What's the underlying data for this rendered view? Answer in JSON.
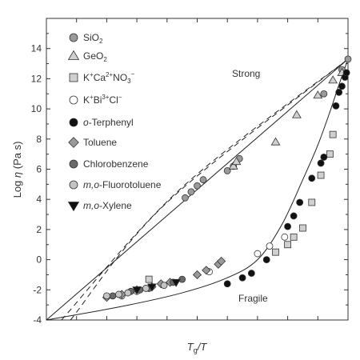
{
  "chart_data": {
    "type": "scatter",
    "title": "",
    "xlabel": "Tg/T",
    "ylabel": "Log η (Pa s)",
    "xlim": [
      0,
      1
    ],
    "ylim": [
      -4,
      16
    ],
    "yticks": [
      -4,
      -2,
      0,
      2,
      4,
      6,
      8,
      10,
      12,
      14
    ],
    "xticks_minor": [
      0.1,
      0.2,
      0.3,
      0.4,
      0.5,
      0.6,
      0.7,
      0.8,
      0.9
    ],
    "legend_position": "top-left",
    "annotations": [
      {
        "text": "Strong",
        "x": 0.66,
        "y": 12.3
      },
      {
        "text": "Fragile",
        "x": 0.65,
        "y": -3.3
      }
    ],
    "reference_lines": [
      {
        "name": "strong-arrhenius",
        "style": "solid",
        "points": [
          [
            0,
            -4
          ],
          [
            1,
            13.3
          ]
        ]
      },
      {
        "name": "fragile-fit",
        "style": "solid",
        "points": [
          [
            0,
            -4
          ],
          [
            0.25,
            -3.1
          ],
          [
            0.45,
            -2.2
          ],
          [
            0.6,
            -1.2
          ],
          [
            0.7,
            0.0
          ],
          [
            0.78,
            2.3
          ],
          [
            0.85,
            5.3
          ],
          [
            0.9,
            7.6
          ],
          [
            0.94,
            9.8
          ],
          [
            0.97,
            11.6
          ],
          [
            1,
            13.3
          ]
        ]
      },
      {
        "name": "dashed-fit-1",
        "style": "dashed",
        "points": [
          [
            0.08,
            -4
          ],
          [
            0.4,
            3.8
          ],
          [
            1,
            13.3
          ]
        ]
      },
      {
        "name": "dashed-fit-2",
        "style": "dashed",
        "points": [
          [
            0.05,
            -4
          ],
          [
            0.45,
            4.8
          ],
          [
            1,
            13.3
          ]
        ]
      }
    ],
    "series": [
      {
        "name": "SiO",
        "sub": "2",
        "sup": "",
        "marker": "circle",
        "fill": "#9a9a9a",
        "points": [
          [
            0.46,
            4.1
          ],
          [
            0.48,
            4.5
          ],
          [
            0.5,
            4.9
          ],
          [
            0.52,
            5.3
          ],
          [
            0.6,
            5.9
          ],
          [
            0.62,
            6.2
          ],
          [
            0.64,
            6.7
          ],
          [
            0.92,
            11.0
          ],
          [
            0.98,
            12.6
          ],
          [
            1.0,
            13.3
          ]
        ]
      },
      {
        "name": "GeO",
        "sub": "2",
        "sup": "",
        "marker": "triangle-up",
        "fill": "#d0d0d0",
        "points": [
          [
            0.62,
            6.2
          ],
          [
            0.63,
            6.5
          ],
          [
            0.76,
            7.8
          ],
          [
            0.83,
            9.6
          ],
          [
            0.9,
            10.9
          ],
          [
            0.95,
            11.9
          ],
          [
            0.98,
            12.4
          ]
        ]
      },
      {
        "name": "K+Ca2+NO3−",
        "sub": "",
        "sup": "",
        "marker": "square",
        "fill": "#d0d0d0",
        "points": [
          [
            0.34,
            -1.3
          ],
          [
            0.76,
            0.5
          ],
          [
            0.8,
            1.0
          ],
          [
            0.82,
            1.5
          ],
          [
            0.85,
            2.1
          ],
          [
            0.88,
            3.8
          ],
          [
            0.91,
            5.6
          ],
          [
            0.94,
            7.0
          ],
          [
            0.95,
            8.3
          ]
        ]
      },
      {
        "name": "K+Bi3+Cl−",
        "sub": "",
        "sup": "",
        "marker": "circle-open",
        "fill": "#ffffff",
        "points": [
          [
            0.25,
            -2.4
          ],
          [
            0.3,
            -2.1
          ],
          [
            0.54,
            -0.8
          ],
          [
            0.7,
            0.4
          ],
          [
            0.74,
            0.9
          ],
          [
            0.79,
            1.5
          ]
        ]
      },
      {
        "name": "o-Terphenyl",
        "sub": "",
        "sup": "",
        "marker": "circle",
        "fill": "#111111",
        "points": [
          [
            0.6,
            -1.6
          ],
          [
            0.65,
            -1.2
          ],
          [
            0.68,
            -0.9
          ],
          [
            0.73,
            0.0
          ],
          [
            0.8,
            2.2
          ],
          [
            0.82,
            2.9
          ],
          [
            0.84,
            3.8
          ],
          [
            0.88,
            5.4
          ],
          [
            0.91,
            6.4
          ],
          [
            0.92,
            6.8
          ],
          [
            0.96,
            10.2
          ],
          [
            0.97,
            11.1
          ],
          [
            0.98,
            11.5
          ],
          [
            0.99,
            12.1
          ],
          [
            0.995,
            12.4
          ]
        ]
      },
      {
        "name": "Toluene",
        "sub": "",
        "sup": "",
        "marker": "diamond",
        "fill": "#9a9a9a",
        "points": [
          [
            0.2,
            -2.5
          ],
          [
            0.25,
            -2.3
          ],
          [
            0.3,
            -2.0
          ],
          [
            0.35,
            -1.8
          ],
          [
            0.38,
            -1.6
          ],
          [
            0.41,
            -1.5
          ],
          [
            0.5,
            -1.0
          ],
          [
            0.53,
            -0.7
          ],
          [
            0.57,
            -0.3
          ],
          [
            0.58,
            -0.1
          ]
        ]
      },
      {
        "name": "Chlorobenzene",
        "sub": "",
        "sup": "",
        "marker": "circle",
        "fill": "#6a6a6a",
        "points": [
          [
            0.22,
            -2.4
          ],
          [
            0.28,
            -2.1
          ],
          [
            0.31,
            -2.0
          ],
          [
            0.34,
            -1.9
          ],
          [
            0.42,
            -1.5
          ],
          [
            0.45,
            -1.3
          ]
        ]
      },
      {
        "name": "m,o-Fluorotoluene",
        "sub": "",
        "sup": "",
        "marker": "circle",
        "fill": "#c4c4c4",
        "points": [
          [
            0.2,
            -2.4
          ],
          [
            0.24,
            -2.3
          ],
          [
            0.27,
            -2.2
          ],
          [
            0.33,
            -1.9
          ],
          [
            0.39,
            -1.7
          ]
        ]
      },
      {
        "name": "m,o-Xylene",
        "sub": "",
        "sup": "",
        "marker": "triangle-down",
        "fill": "#111111",
        "points": [
          [
            0.3,
            -2.0
          ],
          [
            0.35,
            -1.8
          ],
          [
            0.43,
            -1.5
          ]
        ]
      }
    ]
  },
  "legend_labels": {
    "s0": {
      "main": "SiO",
      "sub": "2"
    },
    "s1": {
      "main": "GeO",
      "sub": "2"
    },
    "s2": {
      "a": "K",
      "sup_a": "+",
      "b": "Ca",
      "sup_b": "2+",
      "c": "NO",
      "sub_c": "3",
      "sup_c": "−"
    },
    "s3": {
      "a": "K",
      "sup_a": "+",
      "b": "Bi",
      "sup_b": "3+",
      "c": "Cl",
      "sup_c": "−"
    },
    "s4": {
      "italic": "o",
      "rest": "-Terphenyl"
    },
    "s5": {
      "main": "Toluene"
    },
    "s6": {
      "main": "Chlorobenzene"
    },
    "s7": {
      "italic": "m,o",
      "rest": "-Fluorotoluene"
    },
    "s8": {
      "italic": "m,o",
      "rest": "-Xylene"
    }
  },
  "axis_text": {
    "ylabel_pre": "Log ",
    "ylabel_eta": "η",
    "ylabel_post": " (Pa s)",
    "xlabel_T": "T",
    "xlabel_g": "g",
    "xlabel_post": "/T"
  },
  "annotation_text": {
    "strong": "Strong",
    "fragile": "Fragile"
  }
}
